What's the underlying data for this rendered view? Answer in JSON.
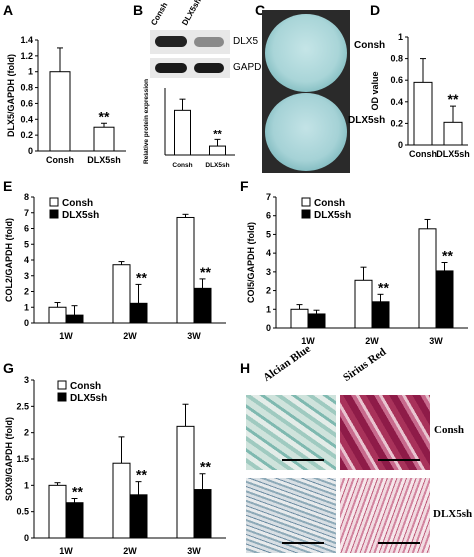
{
  "panels": {
    "A": "A",
    "B": "B",
    "C": "C",
    "D": "D",
    "E": "E",
    "F": "F",
    "G": "G",
    "H": "H"
  },
  "panel_b": {
    "lane_labels": [
      "Consh",
      "DLX5sh"
    ],
    "band_labels": [
      "DLX5",
      "GAPDH"
    ]
  },
  "panel_c": {
    "dish_labels": [
      "Consh",
      "DLX5sh"
    ]
  },
  "panel_h": {
    "column_labels": [
      "Alcian Blue",
      "Sirius Red"
    ],
    "row_labels": [
      "Consh",
      "DLX5sh"
    ]
  },
  "colors": {
    "open_bar": "#ffffff",
    "filled_bar": "#000000",
    "alcian": "#7fb9b0",
    "sirius": "#a8325a"
  },
  "chart_data": [
    {
      "id": "A",
      "type": "bar",
      "categories": [
        "Consh",
        "DLX5sh"
      ],
      "values": [
        1.0,
        0.3
      ],
      "errors": [
        0.3,
        0.05
      ],
      "annotations": [
        "",
        "**"
      ],
      "ylabel": "DLX5/GAPDH (fold)",
      "ylim": [
        0,
        1.4
      ],
      "yticks": [
        "0",
        "0.2",
        "0.4",
        "0.6",
        "0.8",
        "1",
        "1.2",
        "1.4"
      ]
    },
    {
      "id": "B",
      "type": "bar",
      "categories": [
        "Consh",
        "DLX5sh"
      ],
      "values": [
        1.0,
        0.2
      ],
      "errors": [
        0.25,
        0.15
      ],
      "annotations": [
        "",
        "**"
      ],
      "ylabel": "Relative protein expression",
      "ylim": [
        0,
        1.5
      ]
    },
    {
      "id": "D",
      "type": "bar",
      "categories": [
        "Consh",
        "DLX5sh"
      ],
      "values": [
        0.58,
        0.21
      ],
      "errors": [
        0.22,
        0.15
      ],
      "annotations": [
        "",
        "**"
      ],
      "ylabel": "OD value",
      "ylim": [
        0,
        1
      ],
      "yticks": [
        "0",
        "0.2",
        "0.4",
        "0.6",
        "0.8",
        "1"
      ]
    },
    {
      "id": "E",
      "type": "bar",
      "categories": [
        "1W",
        "2W",
        "3W"
      ],
      "series": [
        {
          "name": "Consh",
          "values": [
            1.0,
            3.7,
            6.7
          ],
          "errors": [
            0.3,
            0.2,
            0.2
          ]
        },
        {
          "name": "DLX5sh",
          "values": [
            0.5,
            1.25,
            2.2
          ],
          "errors": [
            0.6,
            1.2,
            0.6
          ]
        }
      ],
      "annotations": [
        "",
        "**",
        "**"
      ],
      "ylabel": "COL2/GAPDH (fold)",
      "ylim": [
        0,
        8
      ],
      "yticks": [
        "0",
        "1",
        "2",
        "3",
        "4",
        "5",
        "6",
        "7",
        "8"
      ]
    },
    {
      "id": "F",
      "type": "bar",
      "categories": [
        "1W",
        "2W",
        "3W"
      ],
      "series": [
        {
          "name": "Consh",
          "values": [
            1.0,
            2.55,
            5.3
          ],
          "errors": [
            0.25,
            0.7,
            0.5
          ]
        },
        {
          "name": "DLX5sh",
          "values": [
            0.75,
            1.4,
            3.05
          ],
          "errors": [
            0.2,
            0.4,
            0.45
          ]
        }
      ],
      "annotations": [
        "",
        "**",
        "**"
      ],
      "ylabel": "COl5/GAPDH (fold)",
      "ylim": [
        0,
        7
      ],
      "yticks": [
        "0",
        "1",
        "2",
        "3",
        "4",
        "5",
        "6",
        "7"
      ]
    },
    {
      "id": "G",
      "type": "bar",
      "categories": [
        "1W",
        "2W",
        "3W"
      ],
      "series": [
        {
          "name": "Consh",
          "values": [
            1.0,
            1.42,
            2.12
          ],
          "errors": [
            0.05,
            0.5,
            0.42
          ]
        },
        {
          "name": "DLX5sh",
          "values": [
            0.67,
            0.82,
            0.92
          ],
          "errors": [
            0.08,
            0.25,
            0.3
          ]
        }
      ],
      "annotations": [
        "**",
        "**",
        "**"
      ],
      "ylabel": "SOX9/GAPDH (fold)",
      "ylim": [
        0,
        3
      ],
      "yticks": [
        "0",
        "0.5",
        "1",
        "1.5",
        "2",
        "2.5",
        "3"
      ]
    }
  ]
}
